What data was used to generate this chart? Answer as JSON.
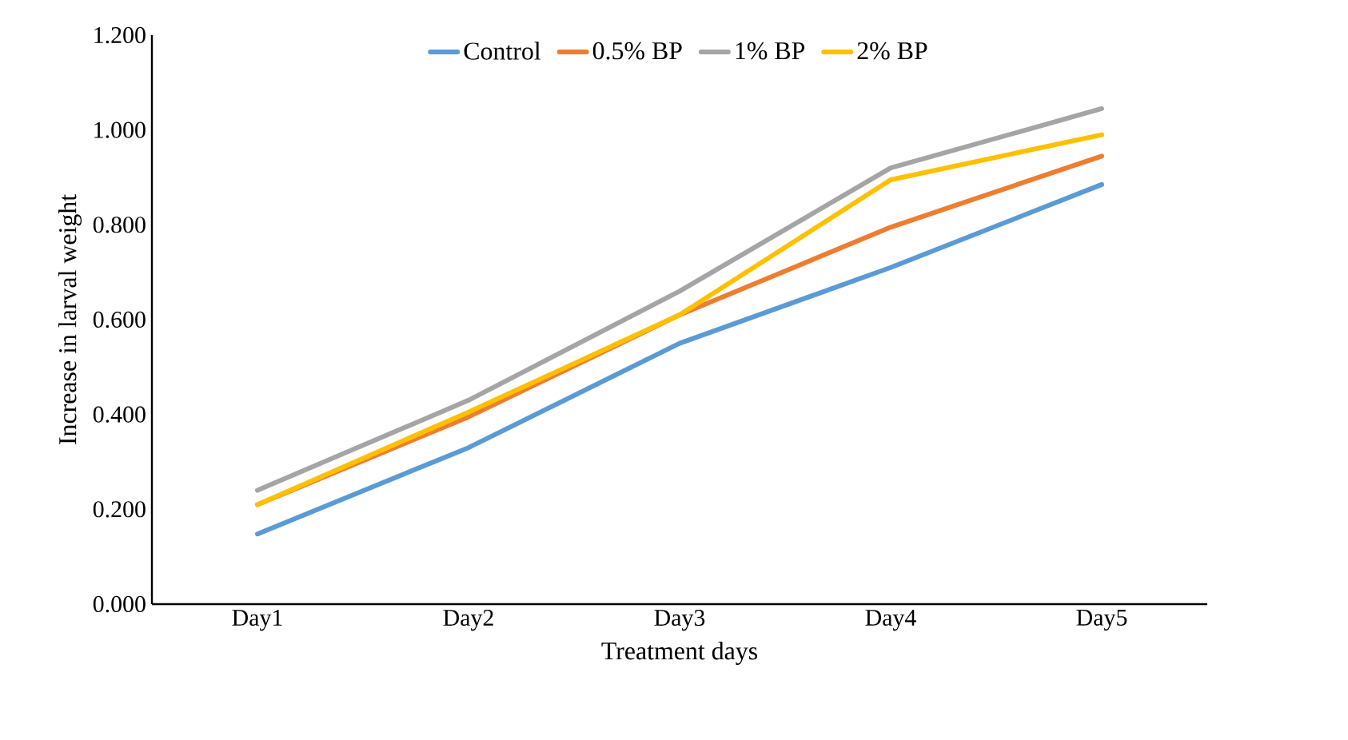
{
  "chart_data": {
    "type": "line",
    "xlabel": "Treatment days",
    "ylabel": "Increase in larval weight",
    "categories": [
      "Day1",
      "Day2",
      "Day3",
      "Day4",
      "Day5"
    ],
    "series": [
      {
        "name": "Control",
        "color": "#5b9bd5",
        "values": [
          0.148,
          0.33,
          0.55,
          0.71,
          0.885
        ]
      },
      {
        "name": "0.5% BP",
        "color": "#ed7d31",
        "values": [
          0.21,
          0.395,
          0.61,
          0.795,
          0.945
        ]
      },
      {
        "name": "1% BP",
        "color": "#a5a5a5",
        "values": [
          0.24,
          0.43,
          0.66,
          0.92,
          1.045
        ]
      },
      {
        "name": "2% BP",
        "color": "#ffc000",
        "values": [
          0.21,
          0.405,
          0.61,
          0.895,
          0.99
        ]
      }
    ],
    "ylim": [
      0,
      1.2
    ],
    "yticks": [
      {
        "value": 0,
        "label": "0.000"
      },
      {
        "value": 0.2,
        "label": "0.200"
      },
      {
        "value": 0.4,
        "label": "0.400"
      },
      {
        "value": 0.6,
        "label": "0.600"
      },
      {
        "value": 0.8,
        "label": "0.800"
      },
      {
        "value": 1.0,
        "label": "1.000"
      },
      {
        "value": 1.2,
        "label": "1.200"
      }
    ],
    "legend": "top",
    "grid": false,
    "marker": "none",
    "line_style": "solid"
  }
}
